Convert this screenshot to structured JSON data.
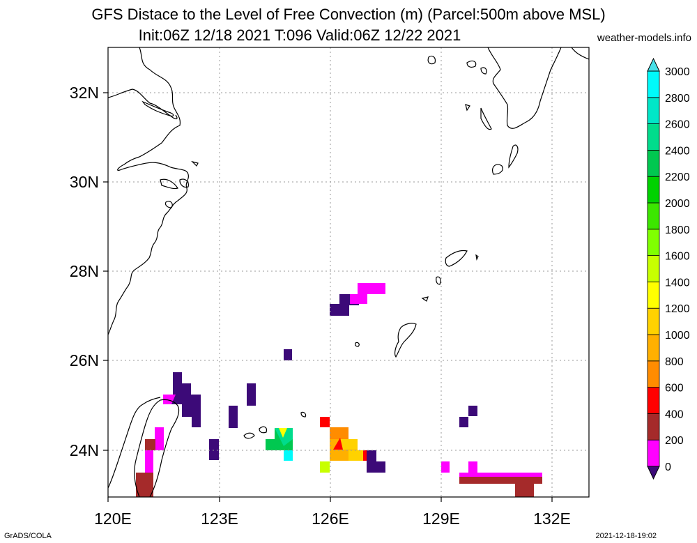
{
  "header": {
    "title_line1": "GFS Distace to the Level of Free Convection (m) (Parcel:500m above MSL)",
    "title_line2": "Init:06Z 12/18 2021 T:096 Valid:06Z 12/22 2021",
    "site": "weather-models.info"
  },
  "footer": {
    "left": "GrADS/COLA",
    "right": "2021-12-18-19:02"
  },
  "map": {
    "lon_labels": [
      "120E",
      "123E",
      "126E",
      "129E",
      "132E"
    ],
    "lat_labels": [
      "32N",
      "30N",
      "28N",
      "26N",
      "24N"
    ],
    "lon_range": [
      120,
      133
    ],
    "lat_range": [
      23,
      33
    ]
  },
  "colorbar": {
    "labels": [
      "0",
      "200",
      "400",
      "600",
      "800",
      "1000",
      "1200",
      "1400",
      "1600",
      "1800",
      "2000",
      "2200",
      "2400",
      "2600",
      "2800",
      "3000"
    ],
    "colors": [
      "#3c0a78",
      "#ff00ff",
      "#a52a2a",
      "#ff0000",
      "#ff8c00",
      "#ffb000",
      "#ffd200",
      "#ffff00",
      "#c8ff00",
      "#80ff00",
      "#3ce600",
      "#00d200",
      "#00c850",
      "#00dc8c",
      "#00e6c8",
      "#00fafa",
      "#48e0e8"
    ]
  }
}
